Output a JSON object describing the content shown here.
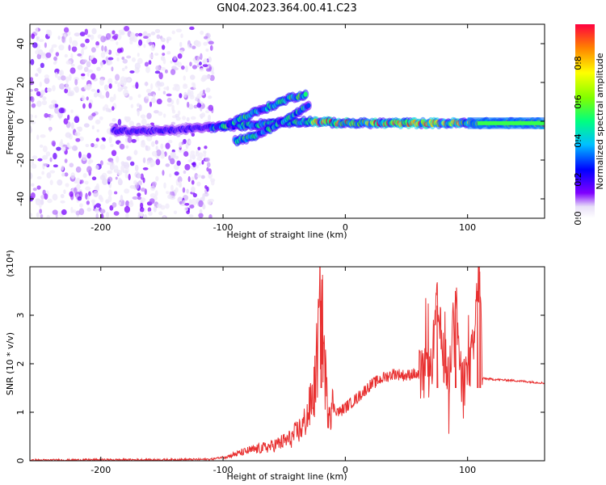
{
  "title": "GN04.2023.364.00.41.C23",
  "chart_data": [
    {
      "type": "heatmap",
      "xlabel": "Height of straight line (km)",
      "ylabel": "Frequency (Hz)",
      "xlim": [
        -258,
        163
      ],
      "ylim": [
        -50,
        50
      ],
      "xticks": [
        -200,
        -100,
        0,
        100
      ],
      "yticks": [
        -40,
        -20,
        0,
        20,
        40
      ],
      "colorbar": {
        "label": "Normalized spectral amplitude",
        "range": [
          0.0,
          1.0
        ],
        "ticks": [
          0.0,
          0.2,
          0.4,
          0.6,
          0.8
        ],
        "colormap": "rainbow (violet to red)"
      },
      "features": [
        {
          "description_label": "noise",
          "x_range": [
            -258,
            -108
          ],
          "y_range": [
            -50,
            48
          ]
        },
        {
          "description_label": "main band",
          "points": [
            [
              -190,
              -5
            ],
            [
              -150,
              -5
            ],
            [
              -110,
              -3
            ],
            [
              -80,
              -2
            ],
            [
              -60,
              -1
            ],
            [
              -30,
              0
            ],
            [
              0,
              -1
            ],
            [
              50,
              -1
            ],
            [
              100,
              -1
            ],
            [
              163,
              -1
            ]
          ]
        },
        {
          "description_label": "upper branch",
          "points": [
            [
              -100,
              -3
            ],
            [
              -80,
              3
            ],
            [
              -60,
              8
            ],
            [
              -45,
              12
            ],
            [
              -32,
              14
            ]
          ]
        },
        {
          "description_label": "lower branch",
          "points": [
            [
              -90,
              -10
            ],
            [
              -75,
              -8
            ],
            [
              -60,
              -3
            ],
            [
              -45,
              2
            ],
            [
              -30,
              8
            ]
          ]
        }
      ]
    },
    {
      "type": "line",
      "xlabel": "Height of straight line (km)",
      "ylabel": "SNR (10 * v/v)",
      "yscale_note": "(x10⁴)",
      "xlim": [
        -258,
        163
      ],
      "ylim": [
        0,
        4
      ],
      "xticks": [
        -200,
        -100,
        0,
        100
      ],
      "yticks": [
        0,
        1,
        2,
        3
      ],
      "color": "#e83030",
      "series": [
        {
          "x": [
            -258,
            -200,
            -150,
            -110,
            -95,
            -80,
            -60,
            -45,
            -35,
            -30,
            -25,
            -22,
            -20,
            -15,
            -10,
            -5,
            0,
            10,
            20,
            30,
            40,
            50,
            55,
            60,
            70,
            75,
            80,
            85,
            90,
            95,
            100,
            105,
            108,
            110,
            112,
            120,
            140,
            163
          ],
          "y": [
            0.01,
            0.02,
            0.02,
            0.03,
            0.1,
            0.2,
            0.3,
            0.45,
            0.7,
            1.0,
            1.5,
            2.5,
            3.3,
            1.2,
            1.1,
            1.0,
            1.1,
            1.3,
            1.55,
            1.7,
            1.8,
            1.75,
            1.8,
            1.75,
            1.8,
            3.2,
            2.2,
            1.7,
            3.5,
            1.5,
            1.8,
            2.3,
            3.5,
            3.9,
            1.7,
            1.68,
            1.65,
            1.6
          ]
        }
      ]
    }
  ]
}
